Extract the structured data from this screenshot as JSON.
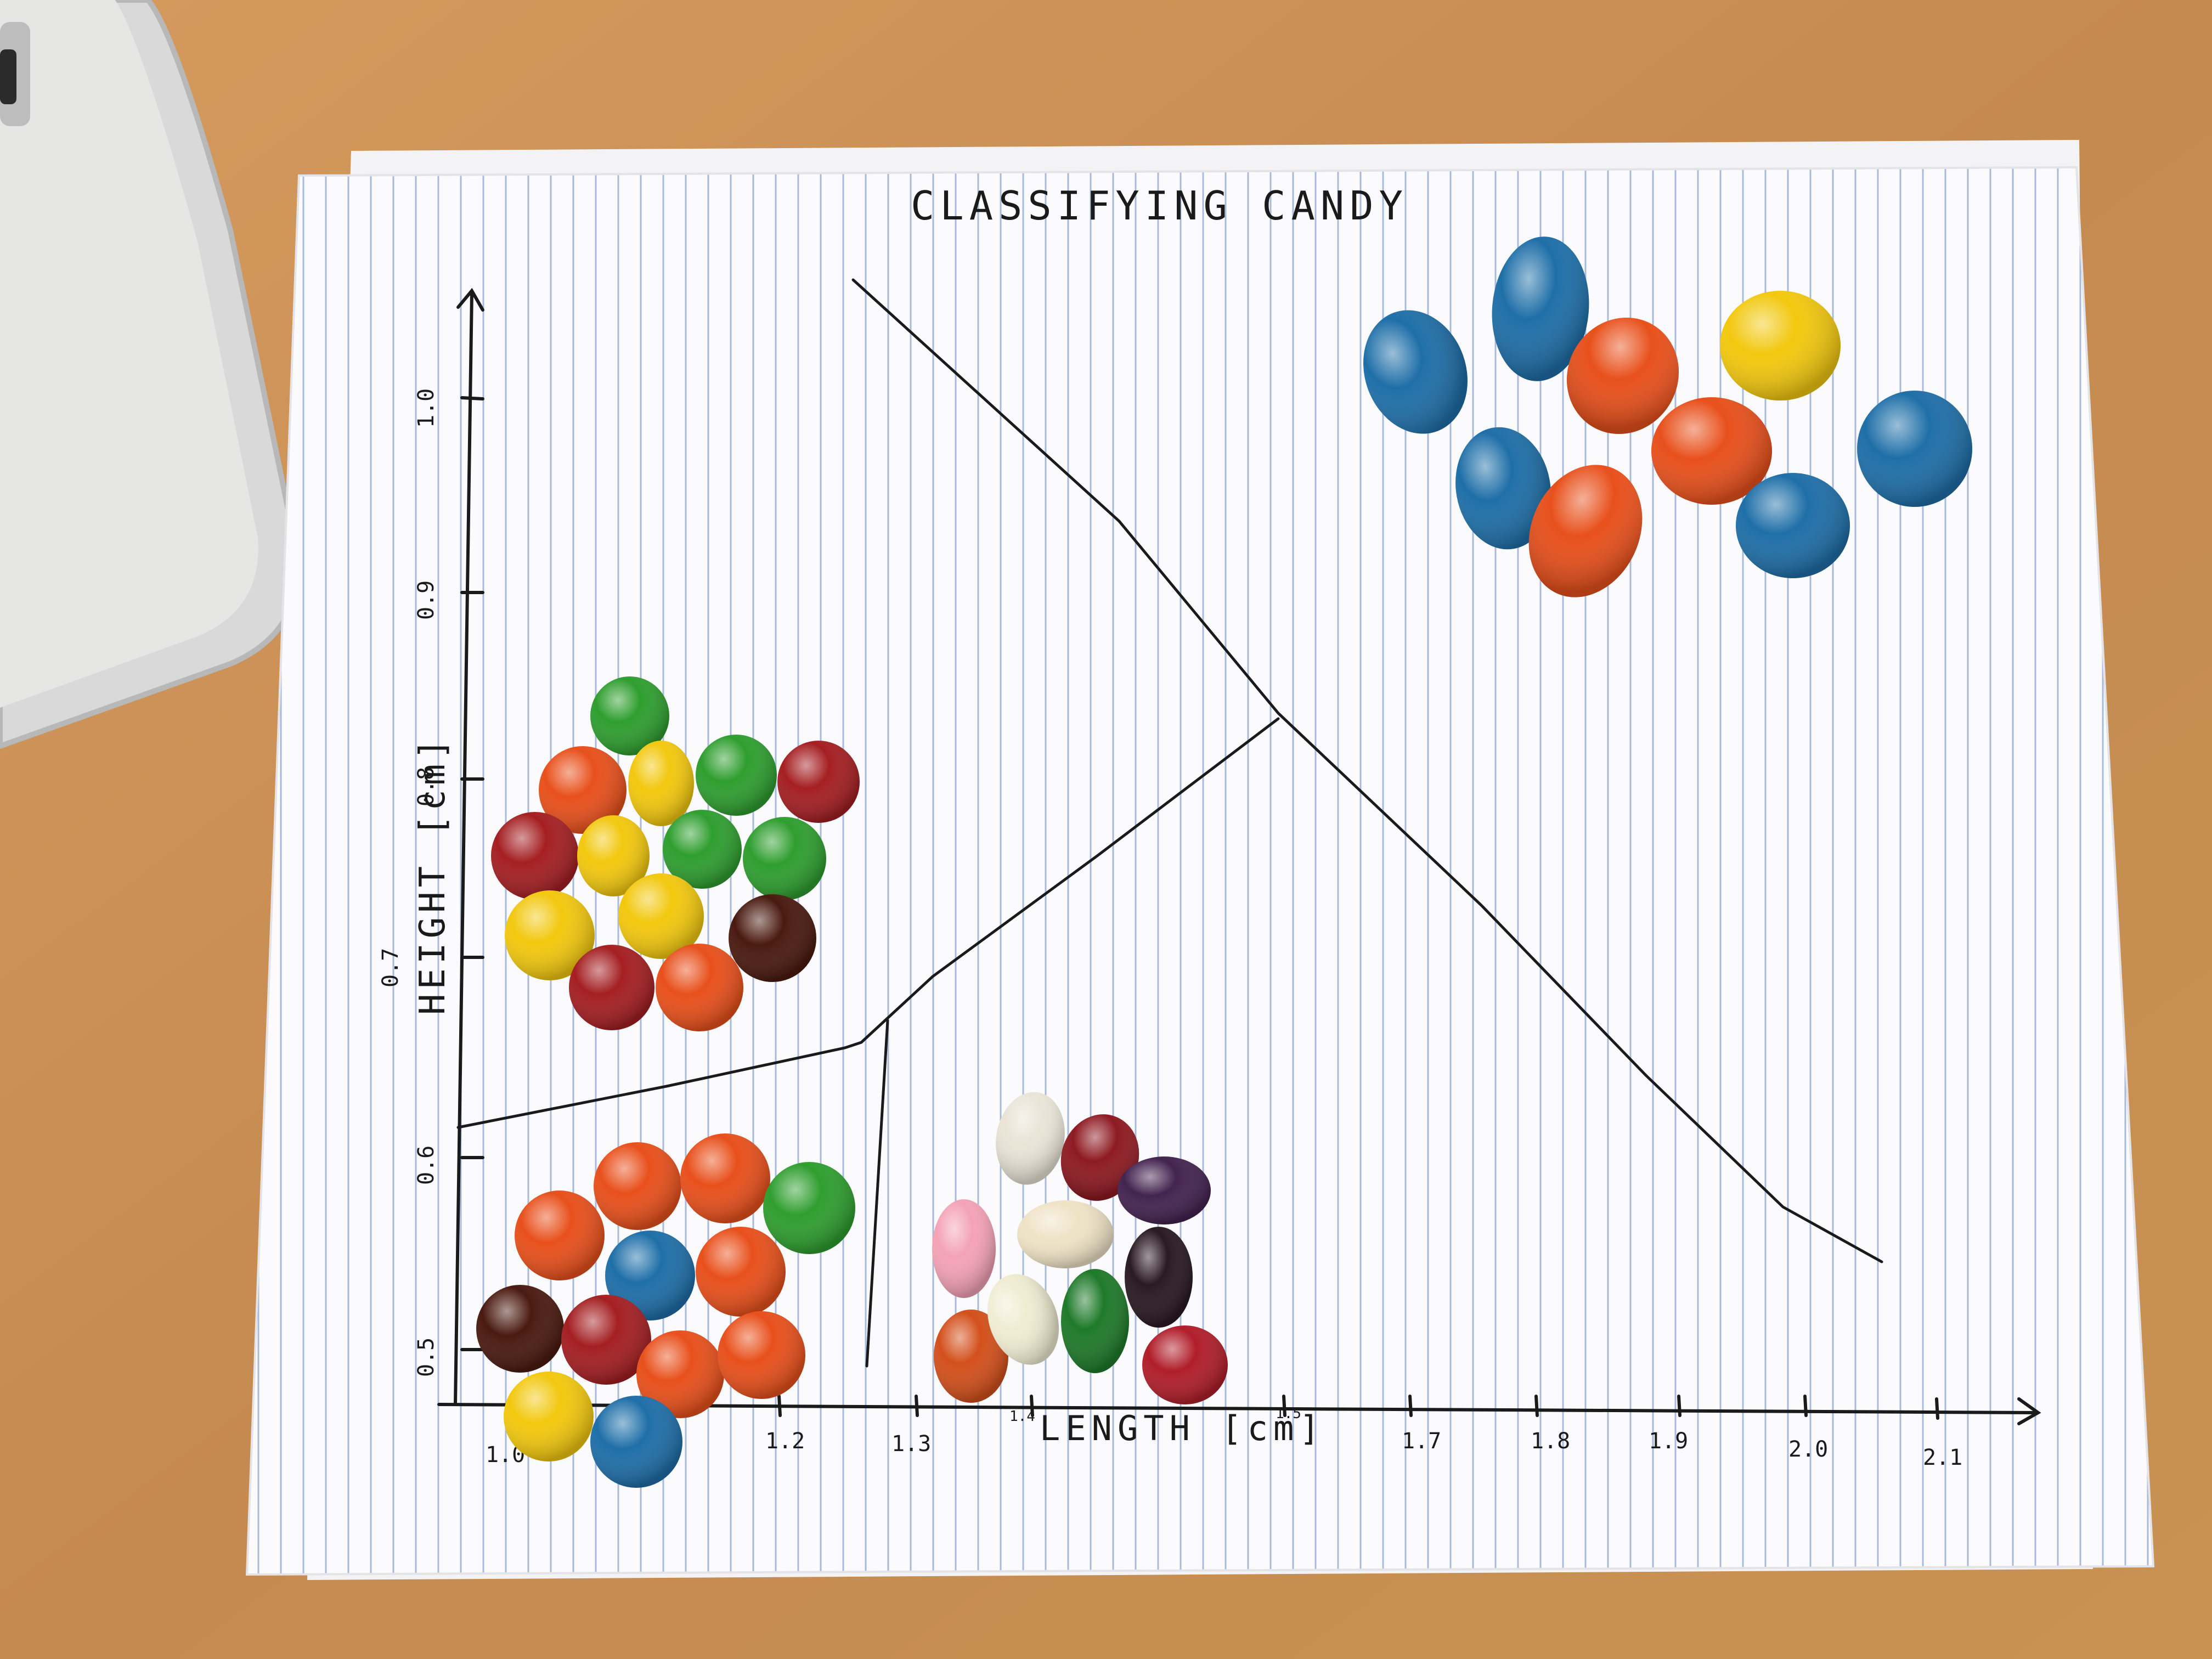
{
  "scene": {
    "title": "CLASSIFYING CANDY",
    "x_axis_label": "LENGTH [cm]",
    "y_axis_label": "HEIGHT [cm]",
    "x_ticks": [
      "1.0",
      "1.2",
      "1.3",
      "1.4",
      "1.5",
      "1.7",
      "1.8",
      "1.9",
      "2.0",
      "2.1"
    ],
    "y_ticks": [
      "1.0",
      "0.9",
      "0.8",
      "0.7",
      "0.6",
      "0.5"
    ],
    "colors": {
      "desk": "#c98f55",
      "paper": "#fbfbfd",
      "rule_line": "#9fb3d6",
      "ink": "#1a1a1a",
      "candy_blue": "#1f6fa8",
      "candy_orange": "#e8501c",
      "candy_yellow": "#f2c80f",
      "candy_green": "#2f9e2f",
      "candy_red": "#a41f22",
      "candy_brown": "#4a1a10"
    },
    "objects": [
      "laptop-corner",
      "paper-sheet",
      "peanut-m-and-ms",
      "skittles",
      "plain-m-and-ms",
      "jelly-beans"
    ]
  }
}
